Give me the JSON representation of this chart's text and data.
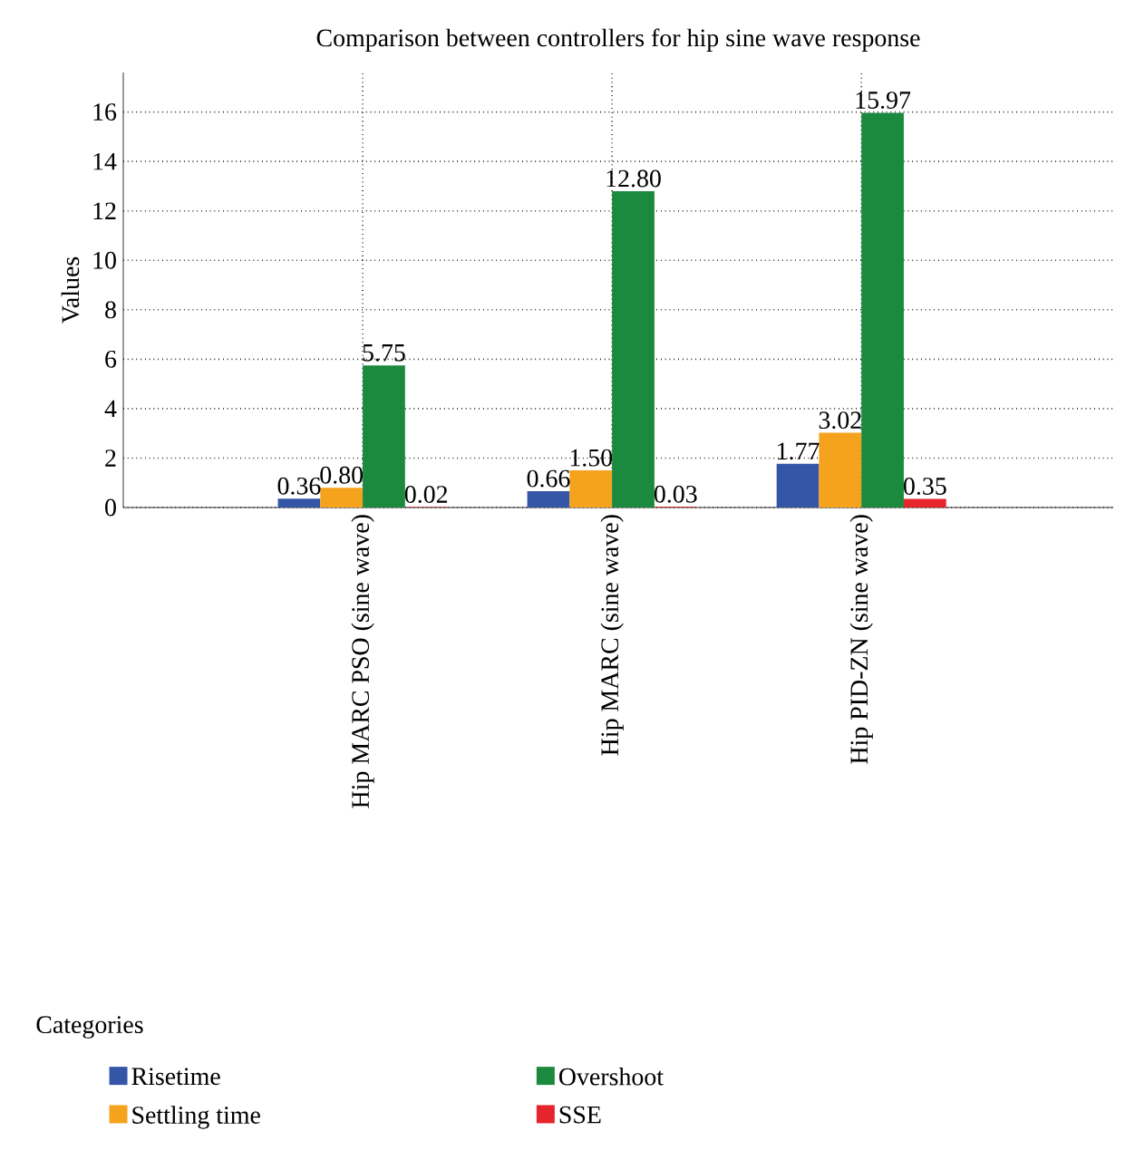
{
  "chart_data": {
    "type": "bar",
    "title": "Comparison between controllers for hip sine wave response",
    "ylabel": "Values",
    "legend_title": "Categories",
    "categories": [
      "Hip MARC PSO (sine wave)",
      "Hip MARC (sine wave)",
      "Hip PID-ZN (sine wave)"
    ],
    "series": [
      {
        "name": "Risetime",
        "color": "#3555a6",
        "values": [
          0.36,
          0.66,
          1.77
        ],
        "value_labels": [
          "0.36",
          "0.66",
          "1.77"
        ]
      },
      {
        "name": "Settling time",
        "color": "#f5a21c",
        "values": [
          0.8,
          1.5,
          3.02
        ],
        "value_labels": [
          "0.80",
          "1.50",
          "3.02"
        ]
      },
      {
        "name": "Overshoot",
        "color": "#1b8a3e",
        "values": [
          5.75,
          12.8,
          15.97
        ],
        "value_labels": [
          "5.75",
          "12.80",
          "15.97"
        ]
      },
      {
        "name": "SSE",
        "color": "#e5242b",
        "values": [
          0.02,
          0.03,
          0.35
        ],
        "value_labels": [
          "0.02",
          "0.03",
          "0.35"
        ]
      }
    ],
    "ylim": [
      0,
      17.6
    ],
    "yticks": [
      0,
      2,
      4,
      6,
      8,
      10,
      12,
      14,
      16
    ],
    "grid": true,
    "legend": "bottom"
  }
}
